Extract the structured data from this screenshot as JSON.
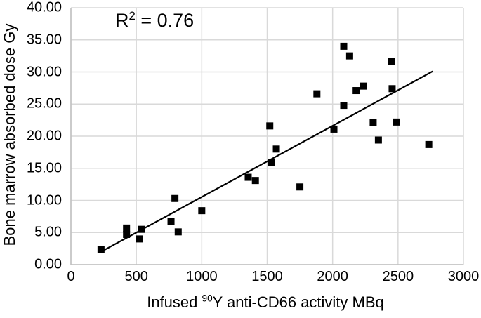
{
  "figure": {
    "y_axis_title": "Bone marrow absorbed dose Gy",
    "x_axis_title": {
      "prefix": "Infused ",
      "superscript": "90",
      "suffix": "Y anti-CD66 activity MBq"
    },
    "annotation": {
      "prefix": "R",
      "superscript": "2",
      "suffix": " = 0.76"
    }
  },
  "chart_data": {
    "type": "scatter",
    "title": "",
    "xlabel": "Infused 90Y anti-CD66 activity MBq",
    "ylabel": "Bone marrow absorbed dose Gy",
    "annotation": "R^2 = 0.76",
    "r_squared": 0.76,
    "xlim": [
      0,
      3000
    ],
    "ylim": [
      0,
      40
    ],
    "grid": true,
    "legend": false,
    "marker": "filled-square",
    "marker_size_px": 10,
    "x_ticks": {
      "values": [
        0,
        500,
        1000,
        1500,
        2000,
        2500,
        3000
      ],
      "labels": [
        "0",
        "500",
        "1000",
        "1500",
        "2000",
        "2500",
        "3000"
      ]
    },
    "y_ticks": {
      "values": [
        0,
        5,
        10,
        15,
        20,
        25,
        30,
        35,
        40
      ],
      "labels": [
        "0.00",
        "5.00",
        "10.00",
        "15.00",
        "20.00",
        "25.00",
        "30.00",
        "35.00",
        "40.00"
      ]
    },
    "points": [
      [
        230,
        2.4
      ],
      [
        425,
        5.7
      ],
      [
        425,
        4.7
      ],
      [
        525,
        4.0
      ],
      [
        540,
        5.5
      ],
      [
        765,
        6.7
      ],
      [
        795,
        10.3
      ],
      [
        820,
        5.1
      ],
      [
        1000,
        8.4
      ],
      [
        1355,
        13.6
      ],
      [
        1410,
        13.1
      ],
      [
        1520,
        21.6
      ],
      [
        1530,
        15.9
      ],
      [
        1570,
        18.0
      ],
      [
        1750,
        12.1
      ],
      [
        1880,
        26.6
      ],
      [
        2010,
        21.1
      ],
      [
        2085,
        34.0
      ],
      [
        2085,
        24.8
      ],
      [
        2130,
        32.5
      ],
      [
        2180,
        27.1
      ],
      [
        2235,
        27.8
      ],
      [
        2310,
        22.1
      ],
      [
        2350,
        19.4
      ],
      [
        2450,
        31.6
      ],
      [
        2455,
        27.4
      ],
      [
        2485,
        22.2
      ],
      [
        2735,
        18.7
      ]
    ],
    "trendline": {
      "x_start": 230,
      "y_start": 2.0,
      "x_end": 2765,
      "y_end": 30.1
    },
    "colors": {
      "marker": "#000000",
      "trendline": "#000000",
      "gridline": "#d9d9d9",
      "axis_line": "#c0c0c0",
      "text": "#000000",
      "background": "#ffffff"
    }
  }
}
